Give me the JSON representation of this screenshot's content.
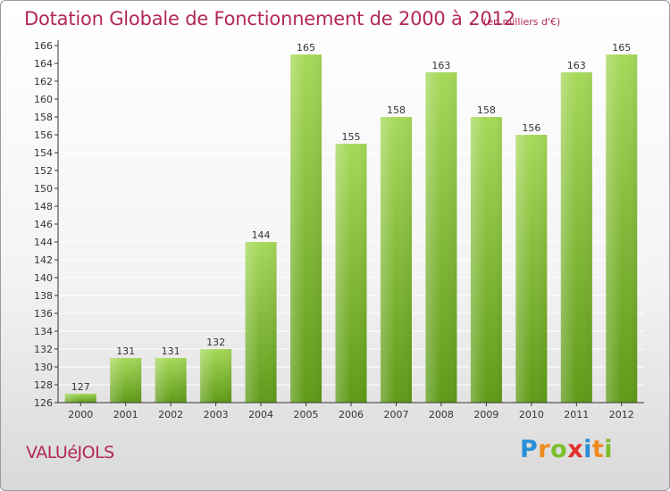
{
  "title": "Dotation Globale de Fonctionnement de 2000 à 2012",
  "unit": "(en milliers d'€)",
  "commune": "VALUéJOLS",
  "logo": {
    "letters": [
      {
        "ch": "P",
        "color": "#2a8fd6"
      },
      {
        "ch": "r",
        "color": "#f08a1c"
      },
      {
        "ch": "o",
        "color": "#7cbf2a"
      },
      {
        "ch": "x",
        "color": "#e0302b"
      },
      {
        "ch": "i",
        "color": "#2a8fd6"
      },
      {
        "ch": "t",
        "color": "#f08a1c"
      },
      {
        "ch": "i",
        "color": "#7cbf2a"
      }
    ]
  },
  "colors": {
    "bar_light": "#a6d95a",
    "bar_dark": "#5f9a18",
    "text": "#b2275b",
    "axis": "#333333",
    "grid": "#ffffff"
  },
  "chart_data": {
    "type": "bar",
    "title": "Dotation Globale de Fonctionnement de 2000 à 2012",
    "unit": "(en milliers d'€)",
    "categories": [
      "2000",
      "2001",
      "2002",
      "2003",
      "2004",
      "2005",
      "2006",
      "2007",
      "2008",
      "2009",
      "2010",
      "2011",
      "2012"
    ],
    "values": [
      127,
      131,
      131,
      132,
      144,
      165,
      155,
      158,
      163,
      158,
      156,
      163,
      165
    ],
    "ylim": [
      126,
      166
    ],
    "yticks": [
      126,
      128,
      130,
      132,
      134,
      136,
      138,
      140,
      142,
      144,
      146,
      148,
      150,
      152,
      154,
      156,
      158,
      160,
      162,
      164,
      166
    ],
    "grid": true,
    "data_labels": true
  }
}
